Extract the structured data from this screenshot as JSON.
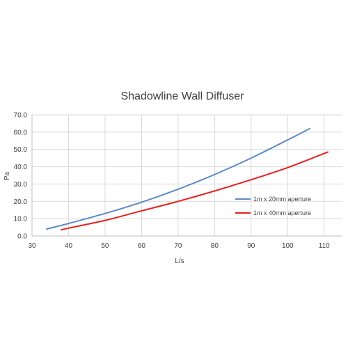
{
  "chart_data": {
    "type": "line",
    "title": "Shadowline Wall Diffuser",
    "xlabel": "L/s",
    "ylabel": "Pa",
    "xlim": [
      30,
      115
    ],
    "ylim": [
      0,
      70
    ],
    "xticks": [
      30,
      40,
      50,
      60,
      70,
      80,
      90,
      100,
      110
    ],
    "yticks": [
      0,
      10,
      20,
      30,
      40,
      50,
      60,
      70
    ],
    "xtick_labels": [
      "30",
      "40",
      "50",
      "60",
      "70",
      "80",
      "90",
      "100",
      "110"
    ],
    "ytick_labels": [
      "0.0",
      "10.0",
      "20.0",
      "30.0",
      "40.0",
      "50.0",
      "60.0",
      "70.0"
    ],
    "grid": true,
    "legend_position": "right",
    "series": [
      {
        "name": "1m x 20mm aperture",
        "color": "#5b8ac6",
        "x": [
          34,
          40,
          50,
          60,
          70,
          80,
          90,
          100,
          106
        ],
        "y": [
          4.0,
          7.2,
          13.0,
          19.5,
          27.0,
          35.5,
          45.0,
          55.5,
          62.0
        ]
      },
      {
        "name": "1m x 40mm aperture",
        "color": "#e8201e",
        "x": [
          38,
          40,
          50,
          60,
          70,
          80,
          90,
          100,
          111
        ],
        "y": [
          3.5,
          4.5,
          9.0,
          14.5,
          20.0,
          26.0,
          32.5,
          39.5,
          48.5
        ]
      }
    ]
  }
}
